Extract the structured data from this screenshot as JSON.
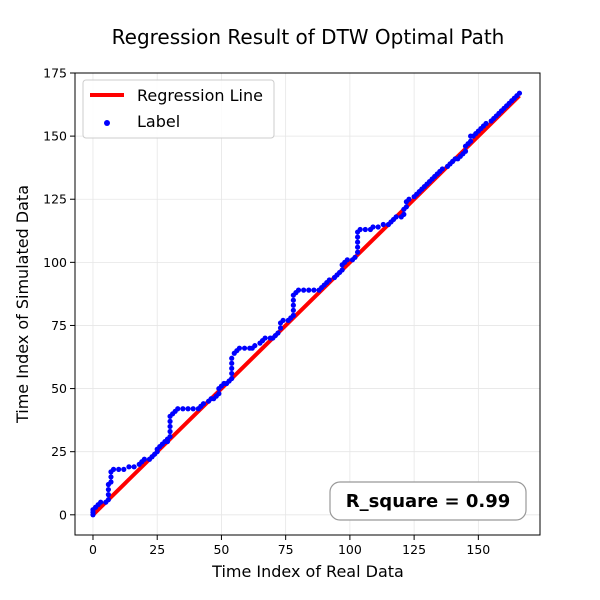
{
  "chart_data": {
    "type": "scatter",
    "title": "Regression Result of DTW Optimal Path",
    "xlabel": "Time Index of Real Data",
    "ylabel": "Time Index of Simulated Data",
    "xlim": [
      -7,
      174
    ],
    "ylim": [
      -8,
      175
    ],
    "xticks": [
      0,
      25,
      50,
      75,
      100,
      125,
      150
    ],
    "yticks": [
      0,
      25,
      50,
      75,
      100,
      125,
      150,
      175
    ],
    "grid": true,
    "legend_position": "top-left",
    "annotation": "R_square = 0.99",
    "series": [
      {
        "name": "Regression Line",
        "kind": "line",
        "color": "#ff0000",
        "x": [
          0,
          166
        ],
        "y": [
          0,
          166
        ]
      },
      {
        "name": "Label",
        "kind": "scatter",
        "color": "#0000ff",
        "points": [
          [
            0,
            0
          ],
          [
            0,
            1
          ],
          [
            0,
            2
          ],
          [
            1,
            3
          ],
          [
            2,
            4
          ],
          [
            3,
            5
          ],
          [
            5,
            5
          ],
          [
            6,
            6
          ],
          [
            6,
            8
          ],
          [
            6,
            10
          ],
          [
            6,
            12
          ],
          [
            7,
            13
          ],
          [
            7,
            15
          ],
          [
            7,
            17
          ],
          [
            8,
            18
          ],
          [
            10,
            18
          ],
          [
            12,
            18
          ],
          [
            14,
            19
          ],
          [
            16,
            19
          ],
          [
            18,
            20
          ],
          [
            19,
            21
          ],
          [
            20,
            22
          ],
          [
            22,
            22
          ],
          [
            23,
            23
          ],
          [
            24,
            24
          ],
          [
            25,
            25
          ],
          [
            25,
            26
          ],
          [
            26,
            27
          ],
          [
            27,
            28
          ],
          [
            28,
            29
          ],
          [
            29,
            29
          ],
          [
            29,
            30
          ],
          [
            30,
            31
          ],
          [
            30,
            33
          ],
          [
            30,
            35
          ],
          [
            30,
            37
          ],
          [
            30,
            39
          ],
          [
            31,
            40
          ],
          [
            32,
            41
          ],
          [
            33,
            42
          ],
          [
            35,
            42
          ],
          [
            37,
            42
          ],
          [
            39,
            42
          ],
          [
            41,
            42
          ],
          [
            42,
            43
          ],
          [
            43,
            44
          ],
          [
            45,
            45
          ],
          [
            46,
            46
          ],
          [
            47,
            46
          ],
          [
            48,
            47
          ],
          [
            49,
            48
          ],
          [
            49,
            50
          ],
          [
            50,
            51
          ],
          [
            51,
            52
          ],
          [
            52,
            52
          ],
          [
            53,
            53
          ],
          [
            54,
            54
          ],
          [
            54,
            56
          ],
          [
            54,
            58
          ],
          [
            54,
            60
          ],
          [
            54,
            62
          ],
          [
            55,
            64
          ],
          [
            56,
            65
          ],
          [
            57,
            66
          ],
          [
            59,
            66
          ],
          [
            61,
            66
          ],
          [
            62,
            66
          ],
          [
            63,
            67
          ],
          [
            65,
            68
          ],
          [
            66,
            69
          ],
          [
            67,
            70
          ],
          [
            69,
            70
          ],
          [
            70,
            70
          ],
          [
            71,
            71
          ],
          [
            72,
            72
          ],
          [
            73,
            74
          ],
          [
            73,
            76
          ],
          [
            74,
            77
          ],
          [
            76,
            77
          ],
          [
            77,
            78
          ],
          [
            78,
            79
          ],
          [
            78,
            81
          ],
          [
            78,
            83
          ],
          [
            78,
            85
          ],
          [
            78,
            87
          ],
          [
            79,
            88
          ],
          [
            80,
            89
          ],
          [
            82,
            89
          ],
          [
            84,
            89
          ],
          [
            86,
            89
          ],
          [
            88,
            89
          ],
          [
            89,
            90
          ],
          [
            90,
            91
          ],
          [
            91,
            92
          ],
          [
            92,
            93
          ],
          [
            94,
            94
          ],
          [
            95,
            95
          ],
          [
            96,
            96
          ],
          [
            97,
            97
          ],
          [
            97,
            99
          ],
          [
            98,
            100
          ],
          [
            99,
            101
          ],
          [
            101,
            101
          ],
          [
            102,
            102
          ],
          [
            103,
            104
          ],
          [
            103,
            106
          ],
          [
            103,
            108
          ],
          [
            103,
            110
          ],
          [
            103,
            112
          ],
          [
            104,
            113
          ],
          [
            106,
            113
          ],
          [
            108,
            113
          ],
          [
            109,
            114
          ],
          [
            111,
            114
          ],
          [
            113,
            115
          ],
          [
            115,
            115
          ],
          [
            116,
            116
          ],
          [
            117,
            117
          ],
          [
            118,
            118
          ],
          [
            120,
            118
          ],
          [
            121,
            119
          ],
          [
            121,
            121
          ],
          [
            122,
            122
          ],
          [
            122,
            124
          ],
          [
            123,
            125
          ],
          [
            125,
            126
          ],
          [
            126,
            127
          ],
          [
            127,
            128
          ],
          [
            128,
            129
          ],
          [
            129,
            130
          ],
          [
            130,
            131
          ],
          [
            131,
            132
          ],
          [
            132,
            133
          ],
          [
            133,
            134
          ],
          [
            134,
            135
          ],
          [
            135,
            136
          ],
          [
            136,
            137
          ],
          [
            138,
            138
          ],
          [
            139,
            139
          ],
          [
            140,
            140
          ],
          [
            141,
            141
          ],
          [
            142,
            141
          ],
          [
            143,
            142
          ],
          [
            144,
            143
          ],
          [
            145,
            144
          ],
          [
            145,
            146
          ],
          [
            146,
            147
          ],
          [
            147,
            148
          ],
          [
            147,
            150
          ],
          [
            148,
            150
          ],
          [
            149,
            151
          ],
          [
            150,
            152
          ],
          [
            151,
            153
          ],
          [
            152,
            154
          ],
          [
            153,
            155
          ],
          [
            155,
            156
          ],
          [
            156,
            157
          ],
          [
            157,
            158
          ],
          [
            158,
            159
          ],
          [
            159,
            160
          ],
          [
            160,
            161
          ],
          [
            161,
            162
          ],
          [
            162,
            163
          ],
          [
            163,
            164
          ],
          [
            164,
            165
          ],
          [
            165,
            166
          ],
          [
            166,
            167
          ]
        ]
      }
    ]
  }
}
